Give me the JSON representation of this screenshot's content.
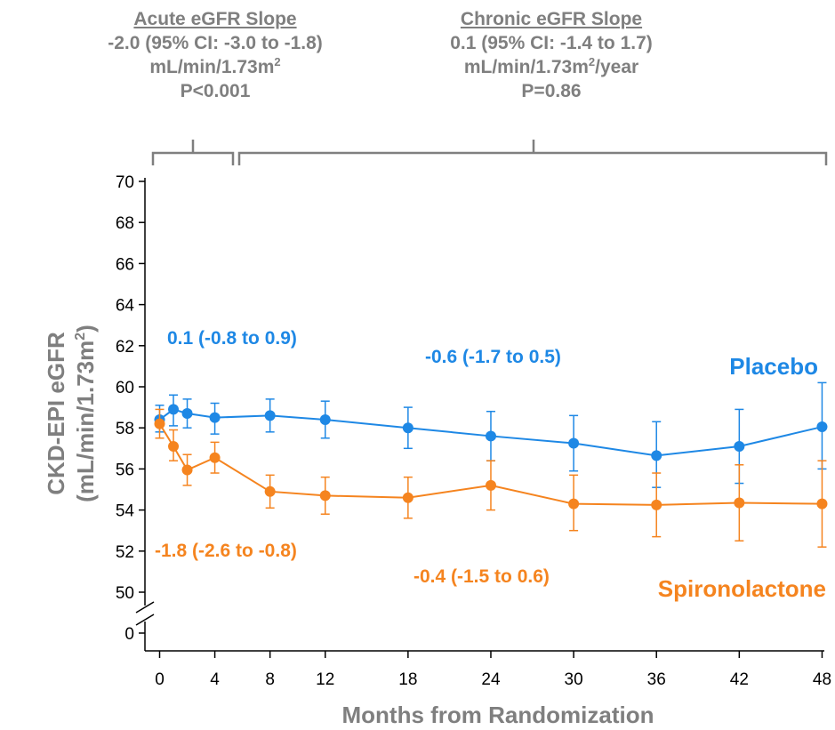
{
  "header": {
    "acute": {
      "title": "Acute eGFR Slope",
      "line1": "-2.0 (95%  CI: -3.0 to -1.8)",
      "line2_pre": "mL/min/1.73m",
      "line2_sup": "2",
      "line2_post": "",
      "line3": "P<0.001"
    },
    "chronic": {
      "title": "Chronic eGFR Slope",
      "line1": "0.1 (95%  CI: -1.4 to 1.7)",
      "line2_pre": "mL/min/1.73m",
      "line2_sup": "2",
      "line2_post": "/year",
      "line3": "P=0.86"
    }
  },
  "colors": {
    "placebo": "#1e88e5",
    "spironolactone": "#f5841f",
    "text_gray": "#7f7f7f",
    "bracket": "#7f7f7f"
  },
  "chart_data": {
    "type": "line",
    "xlabel": "Months from Randomization",
    "ylabel_line1": "CKD-EPI eGFR",
    "ylabel_line2_pre": "(mL/min/1.73m",
    "ylabel_line2_sup": "2",
    "ylabel_line2_post": ")",
    "xticks": [
      0,
      4,
      8,
      12,
      18,
      24,
      30,
      36,
      42,
      48
    ],
    "yticks": [
      50,
      52,
      54,
      56,
      58,
      60,
      62,
      64,
      66,
      68,
      70
    ],
    "ybreak_tick": 0,
    "xlim": [
      -1,
      48.5
    ],
    "ylim": [
      50,
      70.5
    ],
    "grid": false,
    "series": [
      {
        "name": "Placebo",
        "color": "#1e88e5",
        "x": [
          0,
          1,
          2,
          4,
          8,
          12,
          18,
          24,
          30,
          36,
          42,
          48
        ],
        "y": [
          58.4,
          58.9,
          58.7,
          58.5,
          58.6,
          58.4,
          58.0,
          57.6,
          57.25,
          56.65,
          57.1,
          58.05
        ],
        "err_low": [
          57.8,
          58.1,
          58.0,
          57.7,
          57.8,
          57.5,
          57.0,
          56.4,
          55.9,
          55.1,
          55.3,
          56.0
        ],
        "err_high": [
          59.1,
          59.6,
          59.4,
          59.2,
          59.4,
          59.3,
          59.0,
          58.8,
          58.6,
          58.3,
          58.9,
          60.2
        ]
      },
      {
        "name": "Spironolactone",
        "color": "#f5841f",
        "x": [
          0,
          1,
          2,
          4,
          8,
          12,
          18,
          24,
          30,
          36,
          42,
          48
        ],
        "y": [
          58.2,
          57.1,
          55.95,
          56.55,
          54.9,
          54.7,
          54.6,
          55.2,
          54.3,
          54.25,
          54.35,
          54.3
        ],
        "err_low": [
          57.5,
          56.4,
          55.2,
          55.8,
          54.1,
          53.8,
          53.6,
          54.0,
          53.0,
          52.7,
          52.5,
          52.2
        ],
        "err_high": [
          58.9,
          57.9,
          56.7,
          57.3,
          55.7,
          55.6,
          55.6,
          56.4,
          55.7,
          55.8,
          56.2,
          56.4
        ]
      }
    ],
    "annotations": [
      {
        "text": "0.1 (-0.8 to 0.9)",
        "series": "Placebo"
      },
      {
        "text": "-0.6 (-1.7 to 0.5)",
        "series": "Placebo"
      },
      {
        "text": "-1.8 (-2.6 to -0.8)",
        "series": "Spironolactone"
      },
      {
        "text": "-0.4 (-1.5 to 0.6)",
        "series": "Spironolactone"
      }
    ]
  }
}
